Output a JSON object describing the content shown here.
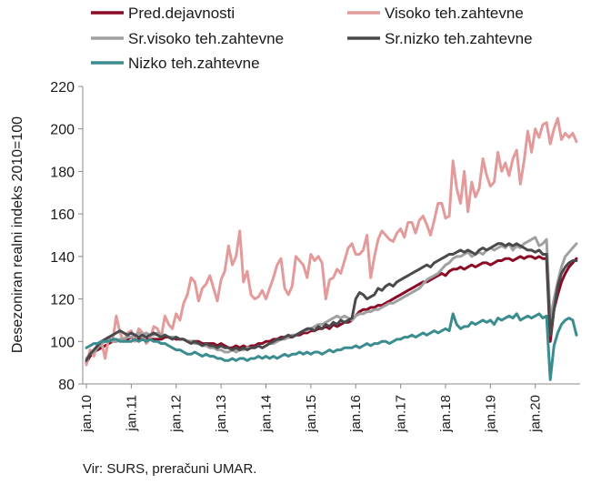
{
  "source": "Vir: SURS, preračuni UMAR.",
  "chart_data": {
    "type": "line",
    "title": "",
    "xlabel": "",
    "ylabel": "Desezoniran realni indeks 2010=100",
    "ylim": [
      80,
      220
    ],
    "yticks": [
      80,
      100,
      120,
      140,
      160,
      180,
      200,
      220
    ],
    "xticks": [
      "jan.10",
      "jan.11",
      "jan.12",
      "jan.13",
      "jan.14",
      "jan.15",
      "jan.16",
      "jan.17",
      "jan.18",
      "jan.19",
      "jan.20"
    ],
    "x_start": "2010-01",
    "x_end": "2020-12",
    "frequency": "monthly",
    "grid": false,
    "legend_position": "top",
    "legend": [
      {
        "name": "Pred.dejavnosti",
        "color": "#8b0a24"
      },
      {
        "name": "Visoko teh.zahtevne",
        "color": "#e39a9b"
      },
      {
        "name": "Sr.visoko teh.zahtevne",
        "color": "#a0a0a0"
      },
      {
        "name": "Sr.nizko teh.zahtevne",
        "color": "#4a4a4c"
      },
      {
        "name": "Nizko teh.zahtevne",
        "color": "#3a8c8f"
      }
    ],
    "series": [
      {
        "name": "Pred.dejavnosti",
        "color": "#8b0a24",
        "values": [
          90,
          93,
          95,
          96,
          97,
          98,
          99,
          100,
          100,
          101,
          101,
          101,
          102,
          101,
          101,
          101,
          101,
          101,
          101,
          101,
          101,
          102,
          102,
          102,
          101,
          101,
          101,
          100,
          100,
          100,
          100,
          99,
          99,
          99,
          99,
          98,
          99,
          98,
          97,
          97,
          98,
          97,
          98,
          97,
          98,
          98,
          99,
          99,
          100,
          100,
          101,
          101,
          102,
          102,
          102,
          102,
          103,
          103,
          104,
          104,
          105,
          105,
          106,
          106,
          107,
          106,
          108,
          107,
          108,
          109,
          109,
          110,
          112,
          114,
          115,
          115,
          116,
          116,
          117,
          117,
          118,
          119,
          120,
          121,
          122,
          123,
          124,
          125,
          126,
          127,
          128,
          128,
          129,
          130,
          131,
          132,
          131,
          133,
          134,
          134,
          135,
          134,
          135,
          136,
          135,
          136,
          137,
          137,
          136,
          137,
          138,
          138,
          139,
          139,
          138,
          139,
          140,
          139,
          140,
          140,
          139,
          140,
          139,
          139,
          100,
          115,
          122,
          128,
          132,
          135,
          137,
          139
        ]
      },
      {
        "name": "Visoko teh.zahtevne",
        "color": "#e39a9b",
        "values": [
          89,
          96,
          93,
          99,
          100,
          92,
          102,
          100,
          112,
          104,
          100,
          104,
          105,
          100,
          106,
          104,
          99,
          101,
          107,
          106,
          102,
          112,
          108,
          106,
          113,
          110,
          118,
          122,
          130,
          128,
          119,
          125,
          127,
          131,
          125,
          119,
          129,
          133,
          145,
          136,
          140,
          152,
          128,
          133,
          122,
          120,
          121,
          124,
          120,
          125,
          130,
          136,
          139,
          125,
          122,
          126,
          140,
          138,
          136,
          130,
          141,
          138,
          140,
          137,
          120,
          129,
          130,
          134,
          132,
          138,
          144,
          146,
          141,
          141,
          143,
          150,
          130,
          140,
          148,
          152,
          150,
          148,
          147,
          151,
          153,
          149,
          156,
          156,
          151,
          157,
          159,
          155,
          150,
          157,
          165,
          165,
          158,
          159,
          185,
          172,
          165,
          180,
          161,
          175,
          168,
          172,
          186,
          178,
          173,
          175,
          189,
          180,
          184,
          178,
          186,
          190,
          174,
          185,
          199,
          189,
          200,
          196,
          202,
          203,
          193,
          200,
          205,
          195,
          198,
          196,
          198,
          194
        ]
      },
      {
        "name": "Sr.visoko teh.zahtevne",
        "color": "#a0a0a0",
        "values": [
          92,
          94,
          95,
          97,
          99,
          100,
          101,
          100,
          100,
          101,
          101,
          102,
          102,
          103,
          104,
          103,
          104,
          103,
          103,
          104,
          103,
          103,
          102,
          102,
          102,
          101,
          101,
          100,
          100,
          99,
          99,
          98,
          98,
          97,
          97,
          96,
          96,
          95,
          95,
          96,
          95,
          96,
          96,
          97,
          97,
          97,
          98,
          97,
          98,
          99,
          99,
          100,
          101,
          101,
          102,
          103,
          103,
          104,
          105,
          105,
          106,
          107,
          108,
          108,
          109,
          110,
          111,
          112,
          111,
          112,
          111,
          110,
          112,
          113,
          113,
          114,
          114,
          115,
          115,
          116,
          117,
          118,
          118,
          119,
          120,
          121,
          122,
          123,
          124,
          125,
          127,
          129,
          130,
          131,
          132,
          134,
          136,
          137,
          139,
          140,
          140,
          141,
          142,
          140,
          141,
          142,
          141,
          143,
          144,
          143,
          144,
          145,
          144,
          146,
          143,
          145,
          144,
          146,
          147,
          148,
          149,
          145,
          146,
          148,
          110,
          120,
          128,
          135,
          140,
          142,
          144,
          146
        ]
      },
      {
        "name": "Sr.nizko teh.zahtevne",
        "color": "#4a4a4c",
        "values": [
          91,
          94,
          96,
          98,
          100,
          101,
          102,
          103,
          104,
          105,
          104,
          103,
          104,
          103,
          102,
          103,
          102,
          103,
          104,
          103,
          102,
          103,
          102,
          101,
          102,
          101,
          101,
          100,
          99,
          100,
          99,
          98,
          99,
          98,
          98,
          97,
          98,
          97,
          97,
          96,
          97,
          96,
          97,
          96,
          97,
          97,
          98,
          97,
          98,
          99,
          100,
          101,
          101,
          102,
          103,
          102,
          103,
          104,
          105,
          106,
          106,
          105,
          107,
          106,
          108,
          107,
          109,
          108,
          110,
          109,
          110,
          111,
          120,
          123,
          122,
          120,
          121,
          122,
          125,
          124,
          126,
          127,
          126,
          128,
          129,
          130,
          131,
          132,
          133,
          134,
          135,
          136,
          135,
          137,
          138,
          139,
          140,
          141,
          141,
          142,
          143,
          142,
          143,
          142,
          141,
          143,
          144,
          143,
          144,
          145,
          146,
          146,
          145,
          146,
          145,
          146,
          145,
          144,
          143,
          143,
          142,
          143,
          141,
          141,
          103,
          115,
          126,
          132,
          135,
          137,
          138,
          138
        ]
      },
      {
        "name": "Nizko teh.zahtevne",
        "color": "#3a8c8f",
        "values": [
          97,
          98,
          99,
          99,
          100,
          100,
          100,
          101,
          101,
          100,
          100,
          100,
          100,
          101,
          100,
          101,
          100,
          101,
          100,
          100,
          99,
          99,
          98,
          97,
          96,
          96,
          95,
          94,
          94,
          95,
          94,
          93,
          94,
          93,
          93,
          92,
          92,
          91,
          91,
          92,
          91,
          92,
          92,
          91,
          92,
          92,
          93,
          92,
          93,
          92,
          93,
          92,
          93,
          94,
          93,
          94,
          94,
          95,
          94,
          95,
          94,
          95,
          95,
          94,
          95,
          96,
          95,
          96,
          96,
          97,
          97,
          97,
          98,
          97,
          98,
          99,
          98,
          99,
          99,
          100,
          100,
          99,
          100,
          101,
          101,
          102,
          102,
          103,
          102,
          103,
          104,
          103,
          104,
          105,
          104,
          105,
          106,
          105,
          113,
          108,
          106,
          107,
          107,
          109,
          108,
          109,
          110,
          109,
          110,
          108,
          111,
          110,
          111,
          112,
          111,
          113,
          110,
          111,
          112,
          111,
          112,
          113,
          111,
          112,
          82,
          98,
          104,
          108,
          110,
          111,
          110,
          103
        ]
      }
    ]
  }
}
